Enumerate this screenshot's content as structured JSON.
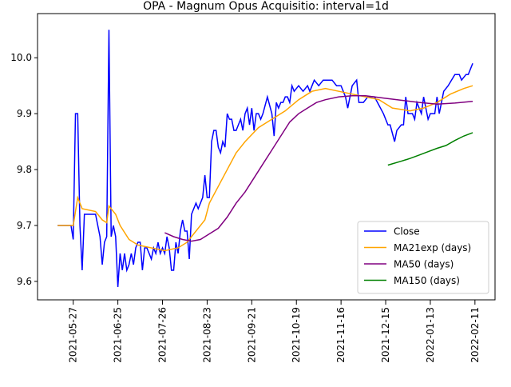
{
  "chart_data": {
    "type": "line",
    "title": "OPA - Magnum Opus Acquisitio: interval=1d",
    "xlim": [
      -9,
      196
    ],
    "xticks": [
      {
        "value": 7,
        "label": "2021-05-27"
      },
      {
        "value": 27,
        "label": "2021-06-25"
      },
      {
        "value": 47,
        "label": "2021-07-26"
      },
      {
        "value": 67,
        "label": "2021-08-23"
      },
      {
        "value": 87,
        "label": "2021-09-21"
      },
      {
        "value": 107,
        "label": "2021-10-19"
      },
      {
        "value": 127,
        "label": "2021-11-16"
      },
      {
        "value": 147,
        "label": "2021-12-15"
      },
      {
        "value": 167,
        "label": "2022-01-13"
      },
      {
        "value": 187,
        "label": "2022-02-11"
      }
    ],
    "ylim": [
      9.567,
      10.079
    ],
    "yticks": [
      9.6,
      9.7,
      9.8,
      9.9,
      {
        "value": 10,
        "label": "10.0"
      }
    ],
    "legend": "lower right",
    "series": [
      {
        "name": "Close",
        "color": "#0000ff",
        "x": [
          0,
          6,
          7,
          8,
          9,
          10,
          11,
          12,
          17,
          19,
          20,
          21,
          22,
          23,
          24,
          25,
          26,
          27,
          28,
          29,
          30,
          31,
          32,
          33,
          34,
          35,
          36,
          37,
          38,
          39,
          40,
          41,
          42,
          43,
          44,
          45,
          46,
          47,
          48,
          49,
          50,
          51,
          52,
          53,
          54,
          55,
          56,
          57,
          58,
          59,
          60,
          62,
          63,
          65,
          66,
          67,
          68,
          69,
          70,
          71,
          72,
          73,
          74,
          75,
          76,
          77,
          78,
          79,
          80,
          81,
          82,
          83,
          84,
          85,
          86,
          87,
          88,
          89,
          90,
          91,
          92,
          94,
          96,
          97,
          98,
          99,
          100,
          101,
          102,
          103,
          104,
          105,
          106,
          108,
          110,
          112,
          113,
          115,
          117,
          119,
          121,
          123,
          125,
          127,
          129,
          130,
          131,
          132,
          134,
          135,
          137,
          139,
          142,
          146,
          148,
          149,
          151,
          152,
          154,
          155,
          156,
          157,
          159,
          160,
          161,
          163,
          164,
          166,
          167,
          169,
          170,
          171,
          173,
          175,
          178,
          180,
          181,
          183,
          184,
          186
        ],
        "values": [
          9.7,
          9.7,
          9.675,
          9.9,
          9.9,
          9.7,
          9.62,
          9.72,
          9.72,
          9.68,
          9.63,
          9.67,
          9.68,
          10.05,
          9.68,
          9.7,
          9.68,
          9.59,
          9.65,
          9.62,
          9.65,
          9.62,
          9.63,
          9.65,
          9.63,
          9.66,
          9.67,
          9.67,
          9.62,
          9.66,
          9.66,
          9.65,
          9.64,
          9.66,
          9.65,
          9.67,
          9.65,
          9.66,
          9.65,
          9.68,
          9.66,
          9.62,
          9.62,
          9.67,
          9.65,
          9.69,
          9.71,
          9.69,
          9.69,
          9.64,
          9.72,
          9.74,
          9.73,
          9.75,
          9.79,
          9.75,
          9.75,
          9.85,
          9.87,
          9.87,
          9.84,
          9.83,
          9.85,
          9.84,
          9.9,
          9.89,
          9.89,
          9.87,
          9.87,
          9.88,
          9.89,
          9.87,
          9.9,
          9.91,
          9.88,
          9.91,
          9.87,
          9.9,
          9.9,
          9.89,
          9.9,
          9.93,
          9.9,
          9.86,
          9.92,
          9.91,
          9.92,
          9.92,
          9.93,
          9.93,
          9.92,
          9.95,
          9.94,
          9.95,
          9.94,
          9.95,
          9.94,
          9.96,
          9.95,
          9.96,
          9.96,
          9.96,
          9.95,
          9.95,
          9.93,
          9.91,
          9.93,
          9.95,
          9.96,
          9.92,
          9.92,
          9.93,
          9.93,
          9.9,
          9.88,
          9.88,
          9.85,
          9.87,
          9.88,
          9.88,
          9.93,
          9.9,
          9.9,
          9.89,
          9.92,
          9.9,
          9.93,
          9.89,
          9.9,
          9.9,
          9.93,
          9.9,
          9.94,
          9.95,
          9.97,
          9.97,
          9.96,
          9.97,
          9.97,
          9.99
        ]
      },
      {
        "name": "MA21exp (days)",
        "color": "#ffa500",
        "x": [
          0,
          7,
          9,
          11,
          17,
          20,
          22,
          23,
          26,
          28,
          32,
          36,
          42,
          48,
          54,
          58,
          62,
          66,
          68,
          72,
          76,
          80,
          84,
          90,
          96,
          102,
          108,
          114,
          120,
          126,
          132,
          138,
          144,
          150,
          158,
          164,
          170,
          176,
          182,
          186
        ],
        "values": [
          9.7,
          9.7,
          9.75,
          9.73,
          9.725,
          9.71,
          9.705,
          9.735,
          9.72,
          9.7,
          9.675,
          9.665,
          9.66,
          9.655,
          9.66,
          9.67,
          9.69,
          9.71,
          9.74,
          9.77,
          9.8,
          9.83,
          9.85,
          9.875,
          9.89,
          9.905,
          9.925,
          9.94,
          9.945,
          9.94,
          9.935,
          9.93,
          9.925,
          9.91,
          9.905,
          9.91,
          9.92,
          9.935,
          9.945,
          9.95
        ]
      },
      {
        "name": "MA50 (days)",
        "color": "#800080",
        "x": [
          48,
          52,
          56,
          60,
          64,
          68,
          72,
          76,
          80,
          84,
          88,
          92,
          96,
          100,
          104,
          108,
          112,
          116,
          120,
          126,
          132,
          138,
          146,
          154,
          162,
          170,
          178,
          186
        ],
        "values": [
          9.687,
          9.68,
          9.675,
          9.672,
          9.675,
          9.685,
          9.695,
          9.715,
          9.74,
          9.76,
          9.785,
          9.81,
          9.835,
          9.86,
          9.885,
          9.9,
          9.91,
          9.92,
          9.925,
          9.93,
          9.932,
          9.932,
          9.928,
          9.924,
          9.92,
          9.917,
          9.919,
          9.922
        ]
      },
      {
        "name": "MA150 (days)",
        "color": "#008000",
        "x": [
          148,
          154,
          158,
          162,
          166,
          170,
          174,
          178,
          182,
          186
        ],
        "values": [
          9.808,
          9.815,
          9.82,
          9.826,
          9.832,
          9.838,
          9.843,
          9.852,
          9.86,
          9.866
        ]
      }
    ]
  }
}
